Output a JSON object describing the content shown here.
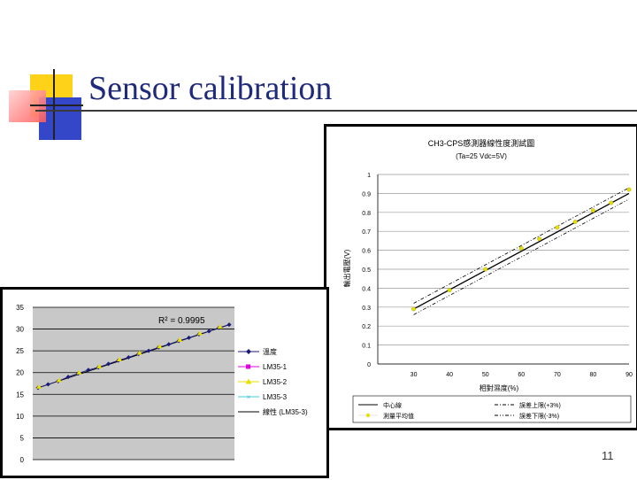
{
  "slide": {
    "title": "Sensor calibration",
    "page_number": "11"
  },
  "chart_data": [
    {
      "type": "scatter",
      "title": "CH3-CPS感測器線性度測試圖",
      "subtitle": "(Ta=25 Vdc=5V)",
      "xlabel": "相對濕度(%)",
      "ylabel": "輸出電壓(V)",
      "xlim": [
        20,
        90
      ],
      "ylim": [
        0,
        1
      ],
      "x_ticks": [
        "30",
        "40",
        "50",
        "60",
        "70",
        "80",
        "90"
      ],
      "y_ticks": [
        "0",
        "0.1",
        "0.2",
        "0.3",
        "0.4",
        "0.5",
        "0.6",
        "0.7",
        "0.8",
        "0.9",
        "1"
      ],
      "grid": true,
      "legend_position": "bottom",
      "series": [
        {
          "name": "中心線",
          "x": [
            30,
            90
          ],
          "y": [
            0.29,
            0.9
          ]
        },
        {
          "name": "測量平均值",
          "x": [
            30,
            40,
            50,
            60,
            65,
            70,
            75,
            80,
            85,
            90
          ],
          "y": [
            0.29,
            0.39,
            0.5,
            0.61,
            0.66,
            0.72,
            0.75,
            0.81,
            0.85,
            0.92
          ]
        },
        {
          "name": "誤差上限(+3%)",
          "x": [
            30,
            90
          ],
          "y": [
            0.32,
            0.93
          ]
        },
        {
          "name": "誤差下限(-3%)",
          "x": [
            30,
            90
          ],
          "y": [
            0.26,
            0.87
          ]
        }
      ],
      "colors": {
        "line": "#000000",
        "marker": "#e8e000"
      }
    },
    {
      "type": "line",
      "annotation": "R² = 0.9995",
      "ylim": [
        0,
        35
      ],
      "y_ticks": [
        "0",
        "5",
        "10",
        "15",
        "20",
        "25",
        "30",
        "35"
      ],
      "grid": true,
      "legend_position": "right",
      "series": [
        {
          "name": "溫度",
          "color": "#1a1a7a"
        },
        {
          "name": "LM35-1",
          "color": "#e000e0"
        },
        {
          "name": "LM35-2",
          "color": "#e8e000"
        },
        {
          "name": "LM35-3",
          "color": "#40c8e0"
        },
        {
          "name": "線性 (LM35-3)",
          "color": "#000000"
        }
      ],
      "points": [
        16.5,
        17.3,
        18.0,
        19.0,
        19.8,
        20.6,
        21.2,
        22.0,
        22.8,
        23.5,
        24.3,
        25.0,
        25.8,
        26.5,
        27.3,
        28.0,
        28.8,
        29.5,
        30.3,
        31.0
      ],
      "colors": {
        "plot_bg": "#c8c8c8"
      }
    }
  ]
}
